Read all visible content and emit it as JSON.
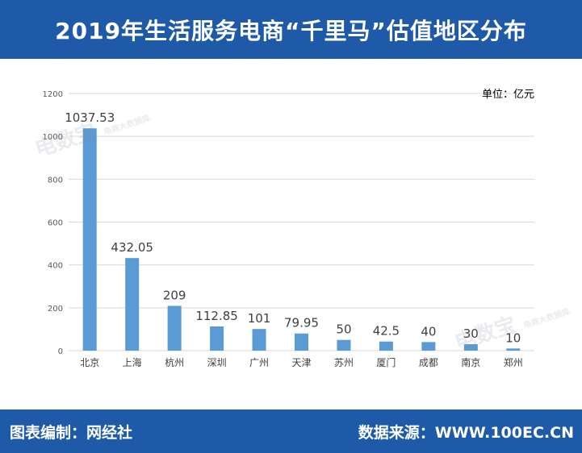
{
  "header": {
    "title": "2019年生活服务电商“千里马”估值地区分布"
  },
  "footer": {
    "left": "图表编制：网经社",
    "right": "数据来源：WWW.100EC.CN"
  },
  "watermark": {
    "brand": "电数宝",
    "sub": "电商大数据库"
  },
  "colors": {
    "bar": "#5b9bd5",
    "header_bg": "#1e5aa8",
    "grid": "#d9d9d9"
  },
  "chart_data": {
    "type": "bar",
    "unit_label": "单位：亿元",
    "categories": [
      "北京",
      "上海",
      "杭州",
      "深圳",
      "广州",
      "天津",
      "苏州",
      "厦门",
      "成都",
      "南京",
      "郑州"
    ],
    "values": [
      1037.53,
      432.05,
      209,
      112.85,
      101,
      79.95,
      50,
      42.5,
      40,
      30,
      10
    ],
    "ylim": [
      0,
      1200
    ],
    "yticks": [
      0,
      200,
      400,
      600,
      800,
      1000,
      1200
    ],
    "grid": true,
    "legend": "none"
  }
}
